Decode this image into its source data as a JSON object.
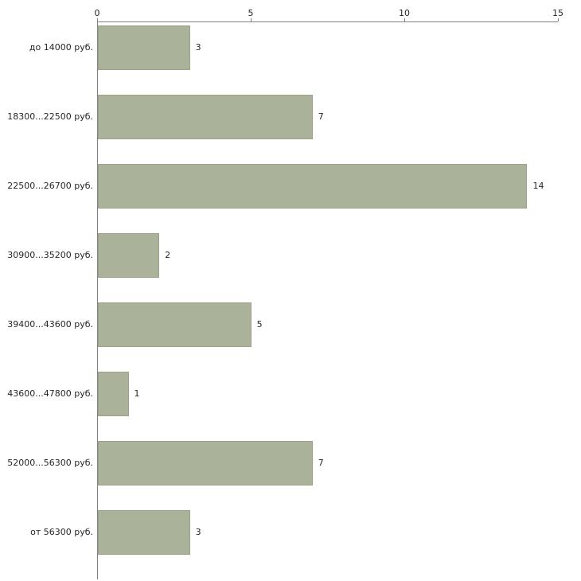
{
  "chart_data": {
    "type": "bar",
    "orientation": "horizontal",
    "title": "",
    "xlabel": "",
    "ylabel": "",
    "categories": [
      "до 14000 руб.",
      "18300...22500 руб.",
      "22500...26700 руб.",
      "30900...35200 руб.",
      "39400...43600 руб.",
      "43600...47800 руб.",
      "52000...56300 руб.",
      "от 56300 руб."
    ],
    "values": [
      3,
      7,
      14,
      2,
      5,
      1,
      7,
      3
    ],
    "xlim": [
      0,
      15
    ],
    "x_ticks": [
      0,
      5,
      10,
      15
    ],
    "x_axis_position": "top",
    "grid": false,
    "legend": false,
    "bar_color": "#abb29a",
    "bar_border_color": "#9aa287",
    "axis_color": "#808080",
    "background_color": "#ffffff"
  }
}
